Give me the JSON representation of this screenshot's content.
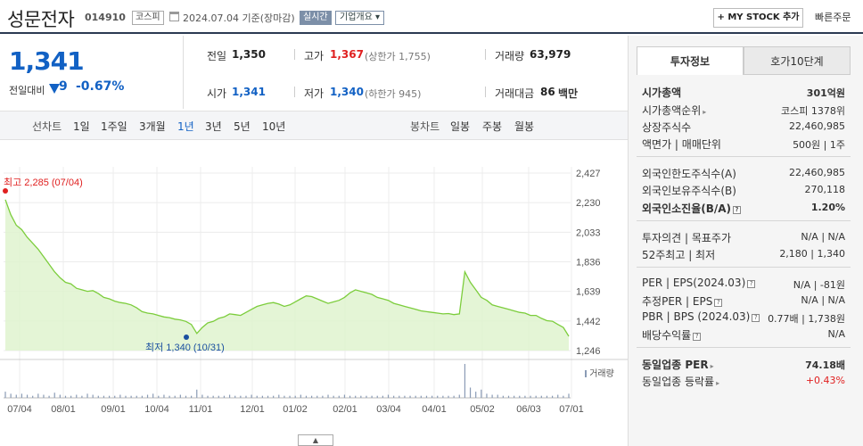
{
  "header": {
    "company": "성문전자",
    "code": "014910",
    "market": "코스피",
    "date_text": "2024.07.04  기준(장마감)",
    "realtime": "실시간",
    "overview": "기업개요 ▾",
    "my_stock": "+ MY STOCK 추가",
    "quick_order": "빠른주문"
  },
  "price": {
    "current": "1,341",
    "prev_label": "전일대비",
    "change": "9",
    "change_pct": "-0.67%"
  },
  "quote": {
    "prev_close_label": "전일",
    "prev_close": "1,350",
    "high_label": "고가",
    "high": "1,367",
    "upper_limit": "(상한가 1,755)",
    "volume_label": "거래량",
    "volume": "63,979",
    "open_label": "시가",
    "open": "1,341",
    "low_label": "저가",
    "low": "1,340",
    "lower_limit": "(하한가 945)",
    "amount_label": "거래대금",
    "amount": "86",
    "amount_unit": "백만"
  },
  "period": {
    "line_label": "선차트",
    "line_items": [
      "1일",
      "1주일",
      "3개월",
      "1년",
      "3년",
      "5년",
      "10년"
    ],
    "active": "1년",
    "candle_label": "봉차트",
    "candle_items": [
      "일봉",
      "주봉",
      "월봉"
    ]
  },
  "chart_data": {
    "type": "area",
    "y_ticks": [
      "2,427",
      "2,230",
      "2,033",
      "1,836",
      "1,639",
      "1,442",
      "1,246"
    ],
    "ylim": [
      1246,
      2427
    ],
    "x_ticks": [
      "07/04",
      "08/01",
      "09/01",
      "10/04",
      "11/01",
      "12/01",
      "01/02",
      "02/01",
      "03/04",
      "04/01",
      "05/02",
      "06/03",
      "07/01"
    ],
    "max_label": "최고 2,285 (07/04)",
    "min_label": "최저 1,340 (10/31)",
    "volume_label": "거래량",
    "line_color": "#7ccd3c",
    "fill_color": "#dff3cf",
    "max_color": "#e02020",
    "min_color": "#1a4fa0",
    "series": [
      {
        "values": [
          2250,
          2150,
          2080,
          2050,
          2000,
          1960,
          1920,
          1870,
          1820,
          1770,
          1730,
          1700,
          1690,
          1660,
          1650,
          1640,
          1645,
          1625,
          1600,
          1590,
          1575,
          1565,
          1560,
          1550,
          1530,
          1505,
          1495,
          1490,
          1480,
          1470,
          1465,
          1455,
          1450,
          1440,
          1420,
          1360,
          1400,
          1430,
          1440,
          1460,
          1470,
          1490,
          1485,
          1480,
          1500,
          1520,
          1540,
          1550,
          1560,
          1565,
          1555,
          1540,
          1550,
          1570,
          1590,
          1610,
          1605,
          1590,
          1575,
          1560,
          1570,
          1580,
          1600,
          1630,
          1650,
          1640,
          1630,
          1620,
          1600,
          1590,
          1580,
          1560,
          1550,
          1540,
          1530,
          1520,
          1510,
          1505,
          1500,
          1495,
          1490,
          1492,
          1485,
          1490,
          1770,
          1700,
          1650,
          1600,
          1580,
          1550,
          1540,
          1530,
          1520,
          1510,
          1500,
          1495,
          1480,
          1480,
          1460,
          1445,
          1441,
          1420,
          1400,
          1341
        ]
      }
    ],
    "volume": [
      6,
      4,
      3,
      4,
      3,
      2,
      4,
      3,
      2,
      5,
      3,
      2,
      2,
      3,
      2,
      4,
      3,
      2,
      2,
      2,
      2,
      3,
      2,
      2,
      2,
      2,
      3,
      4,
      2,
      3,
      2,
      2,
      3,
      2,
      2,
      8,
      3,
      2,
      2,
      2,
      2,
      3,
      2,
      2,
      2,
      3,
      2,
      2,
      2,
      2,
      3,
      2,
      2,
      2,
      3,
      2,
      2,
      2,
      2,
      3,
      2,
      2,
      3,
      2,
      2,
      2,
      2,
      2,
      2,
      2,
      3,
      2,
      2,
      2,
      2,
      2,
      2,
      2,
      2,
      2,
      2,
      2,
      2,
      3,
      33,
      10,
      6,
      8,
      4,
      3,
      3,
      2,
      2,
      2,
      2,
      2,
      2,
      2,
      2,
      2,
      2,
      3,
      2,
      4
    ]
  },
  "right": {
    "tab_invest": "투자정보",
    "tab_hoga": "호가10단계",
    "sections": [
      [
        {
          "label": "시가총액",
          "value": "301억원",
          "bold": true
        },
        {
          "label": "시가총액순위",
          "value": "코스피  1378위"
        },
        {
          "label": "상장주식수",
          "value": "22,460,985"
        },
        {
          "label": "액면가 | 매매단위",
          "value": "500원 | 1주"
        }
      ],
      [
        {
          "label": "외국인한도주식수(A)",
          "value": "22,460,985"
        },
        {
          "label": "외국인보유주식수(B)",
          "value": "270,118"
        },
        {
          "label": "외국인소진율(B/A)",
          "value": "1.20%",
          "bold": true
        }
      ],
      [
        {
          "label": "투자의견 | 목표주가",
          "value": "N/A | N/A"
        },
        {
          "label": "52주최고 | 최저",
          "value": "2,180 | 1,340"
        }
      ],
      [
        {
          "label": "PER | EPS(2024.03)",
          "value": "N/A | -81원"
        },
        {
          "label": "추정PER | EPS",
          "value": "N/A | N/A"
        },
        {
          "label": "PBR | BPS (2024.03)",
          "value": "0.77배 | 1,738원"
        },
        {
          "label": "배당수익률",
          "value": "N/A"
        }
      ],
      [
        {
          "label": "동일업종 PER",
          "value": "74.18배",
          "bold": true
        },
        {
          "label": "동일업종 등락률",
          "value": "+0.43%",
          "red": true
        }
      ]
    ]
  }
}
